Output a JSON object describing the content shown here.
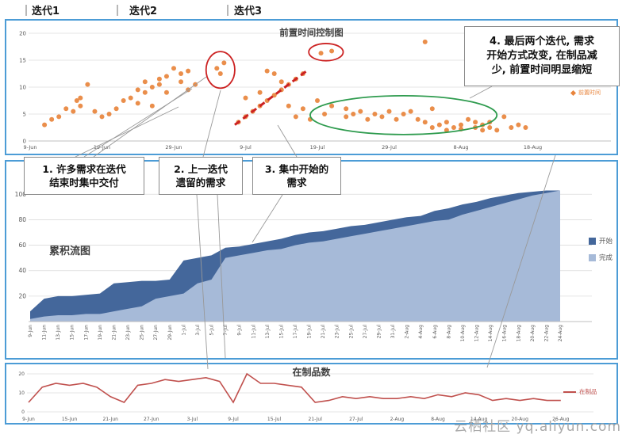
{
  "watermark": "云栖社区 yq.aliyun.com",
  "iteration_labels": [
    "迭代1",
    "迭代2",
    "迭代3"
  ],
  "callouts": {
    "c1": "1. 许多需求在迭代\n结束时集中交付",
    "c2": "2. 上一迭代\n遗留的需求",
    "c3": "3. 集中开始的\n需求",
    "c4": "4. 最后两个迭代, 需求\n开始方式改变, 在制品减\n少, 前置时间明显缩短"
  },
  "colors": {
    "panel_border": "#4C9CD6",
    "annotation_red": "#CC2222",
    "annotation_green": "#2E9B4E"
  },
  "chart_data": [
    {
      "type": "scatter",
      "title": "前置时间控制图",
      "ylim": [
        0,
        20
      ],
      "yticks": [
        0,
        5,
        10,
        15,
        20
      ],
      "xticks": [
        {
          "d": 0,
          "t": "9-Jun"
        },
        {
          "d": 10,
          "t": "19-Jun"
        },
        {
          "d": 20,
          "t": "29-Jun"
        },
        {
          "d": 30,
          "t": "9-Jul"
        },
        {
          "d": 40,
          "t": "19-Jul"
        },
        {
          "d": 50,
          "t": "29-Jul"
        },
        {
          "d": 60,
          "t": "8-Aug"
        },
        {
          "d": 70,
          "t": "18-Aug"
        }
      ],
      "series": [
        {
          "name": "前置时间",
          "color": "#E8843C",
          "points": [
            [
              2,
              3
            ],
            [
              3,
              4
            ],
            [
              4,
              4.5
            ],
            [
              5,
              6
            ],
            [
              6,
              5.5
            ],
            [
              6.5,
              7.5
            ],
            [
              7,
              6.5
            ],
            [
              7,
              8
            ],
            [
              8,
              10.5
            ],
            [
              9,
              5.5
            ],
            [
              10,
              4.5
            ],
            [
              11,
              5
            ],
            [
              12,
              6
            ],
            [
              13,
              7.5
            ],
            [
              14,
              8
            ],
            [
              15,
              9.5
            ],
            [
              15,
              7
            ],
            [
              16,
              9
            ],
            [
              16,
              11
            ],
            [
              17,
              6.5
            ],
            [
              17,
              10
            ],
            [
              18,
              10.5
            ],
            [
              18,
              11.5
            ],
            [
              19,
              9
            ],
            [
              19,
              12
            ],
            [
              20,
              13.5
            ],
            [
              21,
              12.5
            ],
            [
              21,
              11
            ],
            [
              22,
              13
            ],
            [
              22,
              9.5
            ],
            [
              23,
              10.5
            ],
            [
              26,
              13.5
            ],
            [
              26.5,
              12.5
            ],
            [
              27,
              14.5
            ],
            [
              29,
              3.5
            ],
            [
              30,
              4.5
            ],
            [
              30,
              8
            ],
            [
              31,
              5.5
            ],
            [
              32,
              6.5
            ],
            [
              32,
              9
            ],
            [
              33,
              7.5
            ],
            [
              33,
              13
            ],
            [
              34,
              8.5
            ],
            [
              34,
              12.5
            ],
            [
              35,
              9.5
            ],
            [
              35,
              11
            ],
            [
              36,
              10.5
            ],
            [
              36,
              6.5
            ],
            [
              37,
              11.5
            ],
            [
              37,
              4.5
            ],
            [
              38,
              12.5
            ],
            [
              38,
              6
            ],
            [
              39,
              4
            ],
            [
              40,
              7.5
            ],
            [
              40.5,
              16.3
            ],
            [
              41,
              5
            ],
            [
              42,
              16.7
            ],
            [
              42,
              6.5
            ],
            [
              44,
              4.5
            ],
            [
              44,
              6
            ],
            [
              45,
              5
            ],
            [
              46,
              5.5
            ],
            [
              47,
              4
            ],
            [
              48,
              5
            ],
            [
              49,
              4.5
            ],
            [
              50,
              5.5
            ],
            [
              51,
              4
            ],
            [
              52,
              5
            ],
            [
              53,
              5.5
            ],
            [
              54,
              4
            ],
            [
              55,
              18.4
            ],
            [
              55,
              3.5
            ],
            [
              56,
              2.5
            ],
            [
              56,
              6
            ],
            [
              57,
              3
            ],
            [
              58,
              2
            ],
            [
              58,
              3.5
            ],
            [
              59,
              2.5
            ],
            [
              60,
              3
            ],
            [
              60,
              2.2
            ],
            [
              61,
              4
            ],
            [
              62,
              2.5
            ],
            [
              62,
              3.5
            ],
            [
              63,
              2
            ],
            [
              63,
              3
            ],
            [
              64,
              2.5
            ],
            [
              64,
              3.5
            ],
            [
              65,
              2
            ],
            [
              66,
              4.5
            ],
            [
              67,
              2.5
            ],
            [
              68,
              3
            ],
            [
              69,
              2.5
            ]
          ]
        }
      ],
      "annotations": [
        {
          "shape": "ellipse",
          "color": "#CC2222",
          "cx_day": 26.5,
          "cy_val": 13.2,
          "rx_days": 2.0,
          "ry_val": 3.4
        },
        {
          "shape": "ellipse",
          "color": "#CC2222",
          "cx_day": 41.2,
          "cy_val": 16.5,
          "rx_days": 2.4,
          "ry_val": 1.6
        },
        {
          "shape": "ellipse",
          "color": "#2E9B4E",
          "cx_day": 52,
          "cy_val": 4.8,
          "rx_days": 13,
          "ry_val": 3.6
        },
        {
          "shape": "dashed-line",
          "color": "#CC2222",
          "from": [
            28.5,
            3
          ],
          "to": [
            38.5,
            13
          ]
        }
      ]
    },
    {
      "type": "area",
      "title": "累积流图",
      "ylim": [
        0,
        112
      ],
      "yticks": [
        20,
        40,
        60,
        80,
        100
      ],
      "categories": [
        "9-Jun",
        "11-Jun",
        "13-Jun",
        "15-Jun",
        "17-Jun",
        "19-Jun",
        "21-Jun",
        "23-Jun",
        "25-Jun",
        "27-Jun",
        "29-Jun",
        "1-Jul",
        "3-Jul",
        "5-Jul",
        "7-Jul",
        "9-Jul",
        "11-Jul",
        "13-Jul",
        "15-Jul",
        "17-Jul",
        "19-Jul",
        "21-Jul",
        "23-Jul",
        "25-Jul",
        "27-Jul",
        "29-Jul",
        "31-Jul",
        "2-Aug",
        "4-Aug",
        "6-Aug",
        "8-Aug",
        "10-Aug",
        "12-Aug",
        "14-Aug",
        "16-Aug",
        "18-Aug",
        "20-Aug",
        "22-Aug",
        "24-Aug"
      ],
      "series": [
        {
          "name": "开始",
          "color": "#44679B",
          "values": [
            8,
            18,
            20,
            20,
            21,
            22,
            30,
            31,
            32,
            32,
            33,
            48,
            50,
            52,
            58,
            59,
            61,
            63,
            65,
            68,
            70,
            71,
            73,
            75,
            76,
            78,
            80,
            82,
            83,
            87,
            89,
            92,
            94,
            97,
            99,
            101,
            102,
            103,
            103
          ]
        },
        {
          "name": "完成",
          "color": "#A6BAD8",
          "values": [
            2,
            4,
            5,
            5,
            6,
            6,
            8,
            10,
            12,
            18,
            20,
            22,
            30,
            33,
            50,
            52,
            54,
            56,
            57,
            60,
            62,
            63,
            65,
            67,
            69,
            71,
            73,
            75,
            77,
            79,
            80,
            84,
            87,
            90,
            93,
            96,
            99,
            101,
            103
          ]
        }
      ],
      "legend_position": "right"
    },
    {
      "type": "line",
      "title": "在制品数",
      "ylim": [
        0,
        22
      ],
      "yticks": [
        0,
        10,
        20
      ],
      "xticks": [
        {
          "d": 0,
          "t": "9-Jun"
        },
        {
          "d": 6,
          "t": "15-Jun"
        },
        {
          "d": 12,
          "t": "21-Jun"
        },
        {
          "d": 18,
          "t": "27-Jun"
        },
        {
          "d": 24,
          "t": "3-Jul"
        },
        {
          "d": 30,
          "t": "9-Jul"
        },
        {
          "d": 36,
          "t": "15-Jul"
        },
        {
          "d": 42,
          "t": "21-Jul"
        },
        {
          "d": 48,
          "t": "27-Jul"
        },
        {
          "d": 54,
          "t": "2-Aug"
        },
        {
          "d": 60,
          "t": "8-Aug"
        },
        {
          "d": 66,
          "t": "14-Aug"
        },
        {
          "d": 72,
          "t": "20-Aug"
        },
        {
          "d": 78,
          "t": "26-Aug"
        }
      ],
      "series": [
        {
          "name": "在制品",
          "color": "#C0504D",
          "x_step_days": 2,
          "values": [
            5,
            13,
            15,
            14,
            15,
            13,
            8,
            5,
            14,
            15,
            17,
            16,
            17,
            18,
            16,
            5,
            20,
            15,
            15,
            14,
            13,
            5,
            6,
            8,
            7,
            8,
            7,
            7,
            8,
            7,
            9,
            8,
            10,
            9,
            6,
            7,
            6,
            7,
            6,
            6
          ]
        }
      ]
    }
  ]
}
